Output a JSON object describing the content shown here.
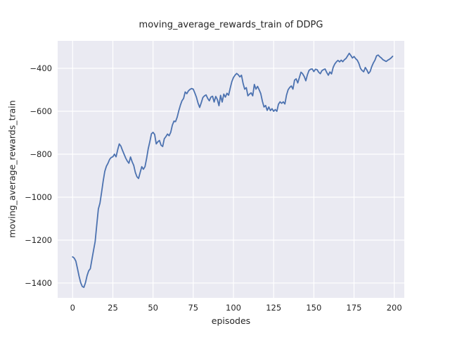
{
  "chart_data": {
    "type": "line",
    "title": "moving_average_rewards_train of DDPG",
    "xlabel": "episodes",
    "ylabel": "moving_average_rewards_train",
    "grid": true,
    "legend": "none",
    "style": "seaborn-darkgrid",
    "plot_bg_color": "#eaeaf2",
    "grid_color": "#ffffff",
    "text_color": "#262626",
    "figure_bg_color": "#ffffff",
    "xlim": [
      -9.31,
      206.25
    ],
    "ylim": [
      -1469,
      -272
    ],
    "xticks": {
      "values": [
        0,
        25,
        50,
        75,
        100,
        125,
        150,
        175,
        200
      ],
      "labels": [
        "0",
        "25",
        "50",
        "75",
        "100",
        "125",
        "150",
        "175",
        "200"
      ]
    },
    "yticks": {
      "values": [
        -400,
        -600,
        -800,
        -1000,
        -1200,
        -1400
      ],
      "labels": [
        "−400",
        "−600",
        "−800",
        "−1000",
        "−1200",
        "−1400"
      ]
    },
    "series": [
      {
        "name": "moving_average_rewards_train",
        "color": "#4c72b0",
        "x_start": 0,
        "x_step": 1,
        "y": [
          -1278,
          -1284,
          -1298,
          -1332,
          -1368,
          -1398,
          -1416,
          -1420,
          -1398,
          -1365,
          -1343,
          -1333,
          -1290,
          -1248,
          -1207,
          -1130,
          -1055,
          -1028,
          -978,
          -925,
          -880,
          -856,
          -842,
          -824,
          -815,
          -812,
          -800,
          -812,
          -780,
          -752,
          -762,
          -782,
          -800,
          -818,
          -832,
          -842,
          -813,
          -835,
          -852,
          -885,
          -905,
          -913,
          -885,
          -858,
          -870,
          -858,
          -820,
          -775,
          -742,
          -705,
          -698,
          -708,
          -752,
          -742,
          -736,
          -758,
          -764,
          -728,
          -718,
          -706,
          -714,
          -698,
          -665,
          -646,
          -648,
          -628,
          -598,
          -572,
          -551,
          -540,
          -510,
          -518,
          -505,
          -498,
          -494,
          -497,
          -515,
          -535,
          -562,
          -582,
          -560,
          -536,
          -528,
          -524,
          -540,
          -551,
          -534,
          -530,
          -557,
          -531,
          -545,
          -574,
          -526,
          -557,
          -520,
          -534,
          -516,
          -525,
          -492,
          -462,
          -443,
          -432,
          -424,
          -430,
          -440,
          -432,
          -470,
          -497,
          -490,
          -528,
          -520,
          -514,
          -528,
          -475,
          -497,
          -484,
          -500,
          -518,
          -553,
          -580,
          -573,
          -596,
          -580,
          -597,
          -588,
          -600,
          -592,
          -600,
          -567,
          -556,
          -563,
          -556,
          -566,
          -525,
          -500,
          -489,
          -482,
          -497,
          -455,
          -449,
          -468,
          -443,
          -418,
          -425,
          -438,
          -458,
          -430,
          -410,
          -404,
          -403,
          -415,
          -404,
          -406,
          -418,
          -425,
          -411,
          -406,
          -403,
          -419,
          -432,
          -417,
          -426,
          -396,
          -380,
          -370,
          -363,
          -370,
          -362,
          -369,
          -360,
          -354,
          -342,
          -330,
          -340,
          -352,
          -345,
          -355,
          -362,
          -377,
          -400,
          -410,
          -416,
          -396,
          -408,
          -424,
          -415,
          -392,
          -375,
          -362,
          -342,
          -338,
          -346,
          -352,
          -360,
          -364,
          -368,
          -362,
          -358,
          -352,
          -344
        ]
      }
    ]
  }
}
